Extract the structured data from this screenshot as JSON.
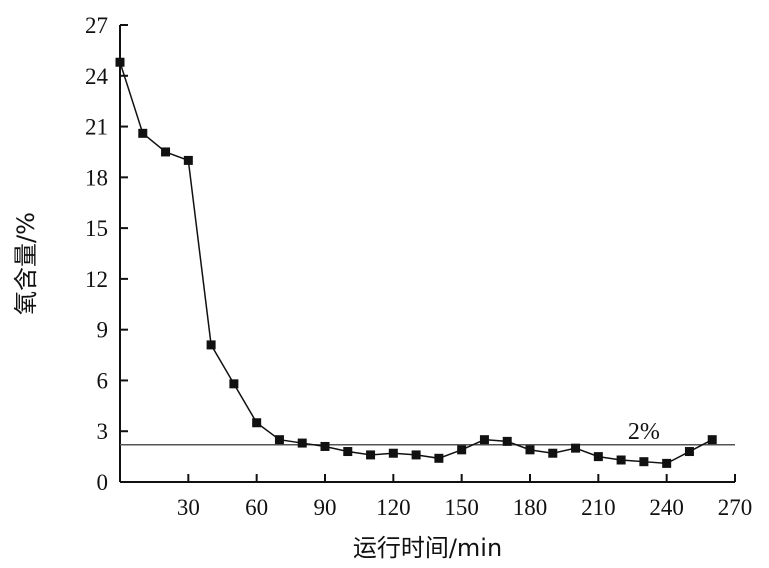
{
  "chart_data": {
    "type": "line",
    "title": "",
    "xlabel": "运行时间/min",
    "ylabel": "氧含量/%",
    "xlim": [
      0,
      270
    ],
    "ylim": [
      0,
      27
    ],
    "xticks": [
      30,
      60,
      90,
      120,
      150,
      180,
      210,
      240,
      270
    ],
    "yticks": [
      0,
      3,
      6,
      9,
      12,
      15,
      18,
      21,
      24,
      27
    ],
    "grid": false,
    "legend": "none",
    "series": [
      {
        "color": "#111111",
        "marker": "square",
        "x": [
          0,
          10,
          20,
          30,
          40,
          50,
          60,
          70,
          80,
          90,
          100,
          110,
          120,
          130,
          140,
          150,
          160,
          170,
          180,
          190,
          200,
          210,
          220,
          230,
          240,
          250,
          260
        ],
        "y": [
          24.8,
          20.6,
          19.5,
          19.0,
          8.1,
          5.8,
          3.5,
          2.5,
          2.3,
          2.1,
          1.8,
          1.6,
          1.7,
          1.6,
          1.4,
          1.9,
          2.5,
          2.4,
          1.9,
          1.7,
          2.0,
          1.5,
          1.3,
          1.2,
          1.1,
          1.8,
          2.5
        ]
      }
    ],
    "reference_line": {
      "y": 2.2,
      "label": "2%",
      "color": "#555555"
    }
  }
}
